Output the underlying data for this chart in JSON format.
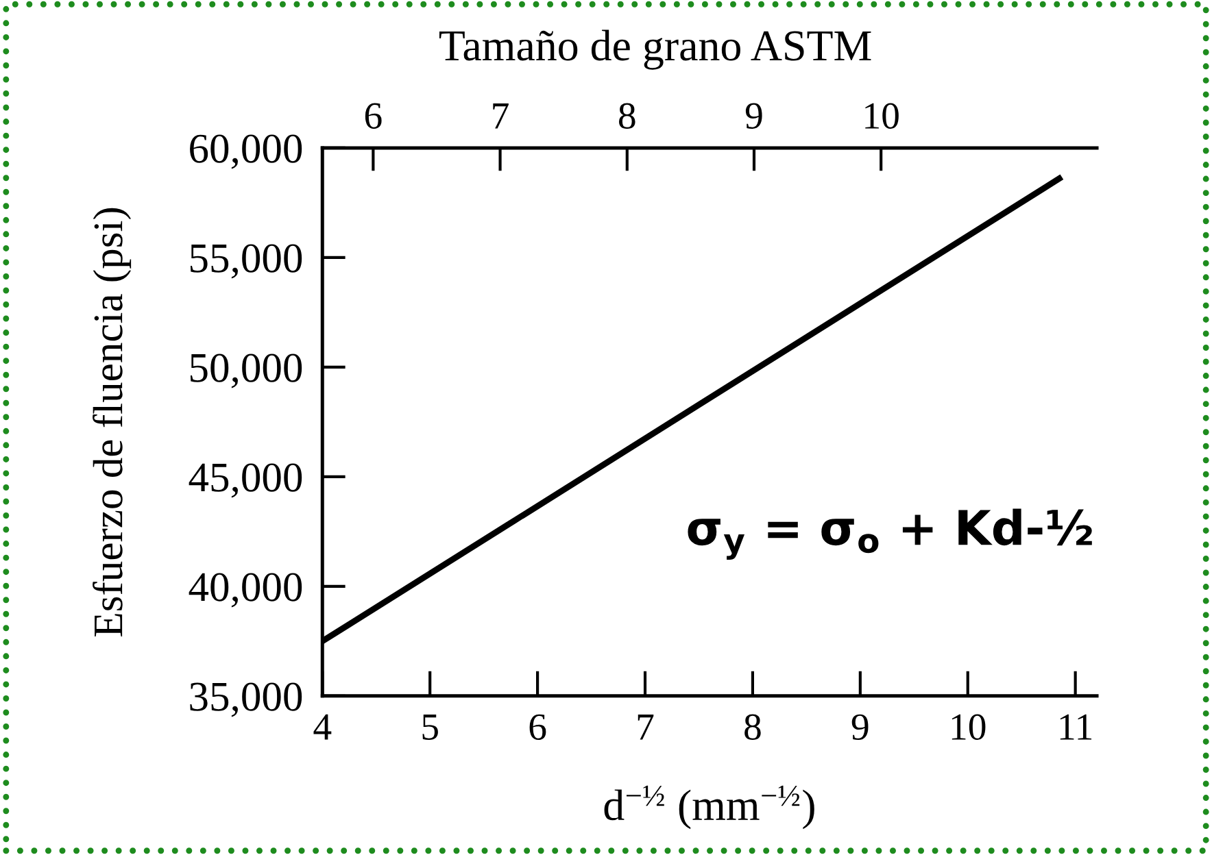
{
  "chart_data": {
    "type": "line",
    "x2label": "Tamaño de grano ASTM",
    "xlabel": "d$^{−½}$ (mm$^{−½}$)",
    "ylabel": "Esfuerzo de fluencia (psi)",
    "annotations": [
      "σ$_{y}$ = σ$_{o}$ + Kd-½"
    ],
    "x": [
      4,
      10.85
    ],
    "series": [
      {
        "color": "#000000",
        "values": [
          37500,
          58600
        ]
      }
    ],
    "xlim": [
      4,
      11.2
    ],
    "xticks": [
      4,
      5,
      6,
      7,
      8,
      9,
      10,
      11
    ],
    "x2lim": [
      5.6,
      11.7
    ],
    "x2ticks": [
      6,
      7,
      8,
      9,
      10
    ],
    "ylim": [
      35000,
      60000
    ],
    "yticks": [
      {
        "value": 35000,
        "label": "35,000"
      },
      {
        "value": 40000,
        "label": "40,000"
      },
      {
        "value": 45000,
        "label": "45,000"
      },
      {
        "value": 50000,
        "label": "50,000"
      },
      {
        "value": 55000,
        "label": "55,000"
      },
      {
        "value": 60000,
        "label": "60,000"
      }
    ],
    "grid": false,
    "marker": "none",
    "line_style": "solid"
  }
}
